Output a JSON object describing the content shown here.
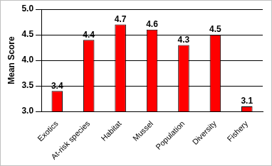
{
  "chart_data": {
    "type": "bar",
    "y_label": "Mean Score",
    "categories": [
      "Exotics",
      "At-risk species",
      "Habitat",
      "Mussel",
      "Population",
      "Diversity",
      "Fishery"
    ],
    "values": [
      3.4,
      4.4,
      4.7,
      4.6,
      4.3,
      4.5,
      3.1
    ],
    "color": "#ff0000",
    "ylim": [
      3,
      5
    ],
    "yticks": [
      {
        "value": 3,
        "label": "3.0"
      },
      {
        "value": 3.5,
        "label": "3.5"
      },
      {
        "value": 4,
        "label": "4.0"
      },
      {
        "value": 4.5,
        "label": "4.5"
      },
      {
        "value": 5,
        "label": "5.0"
      }
    ],
    "grid": true,
    "data_labels": true
  }
}
